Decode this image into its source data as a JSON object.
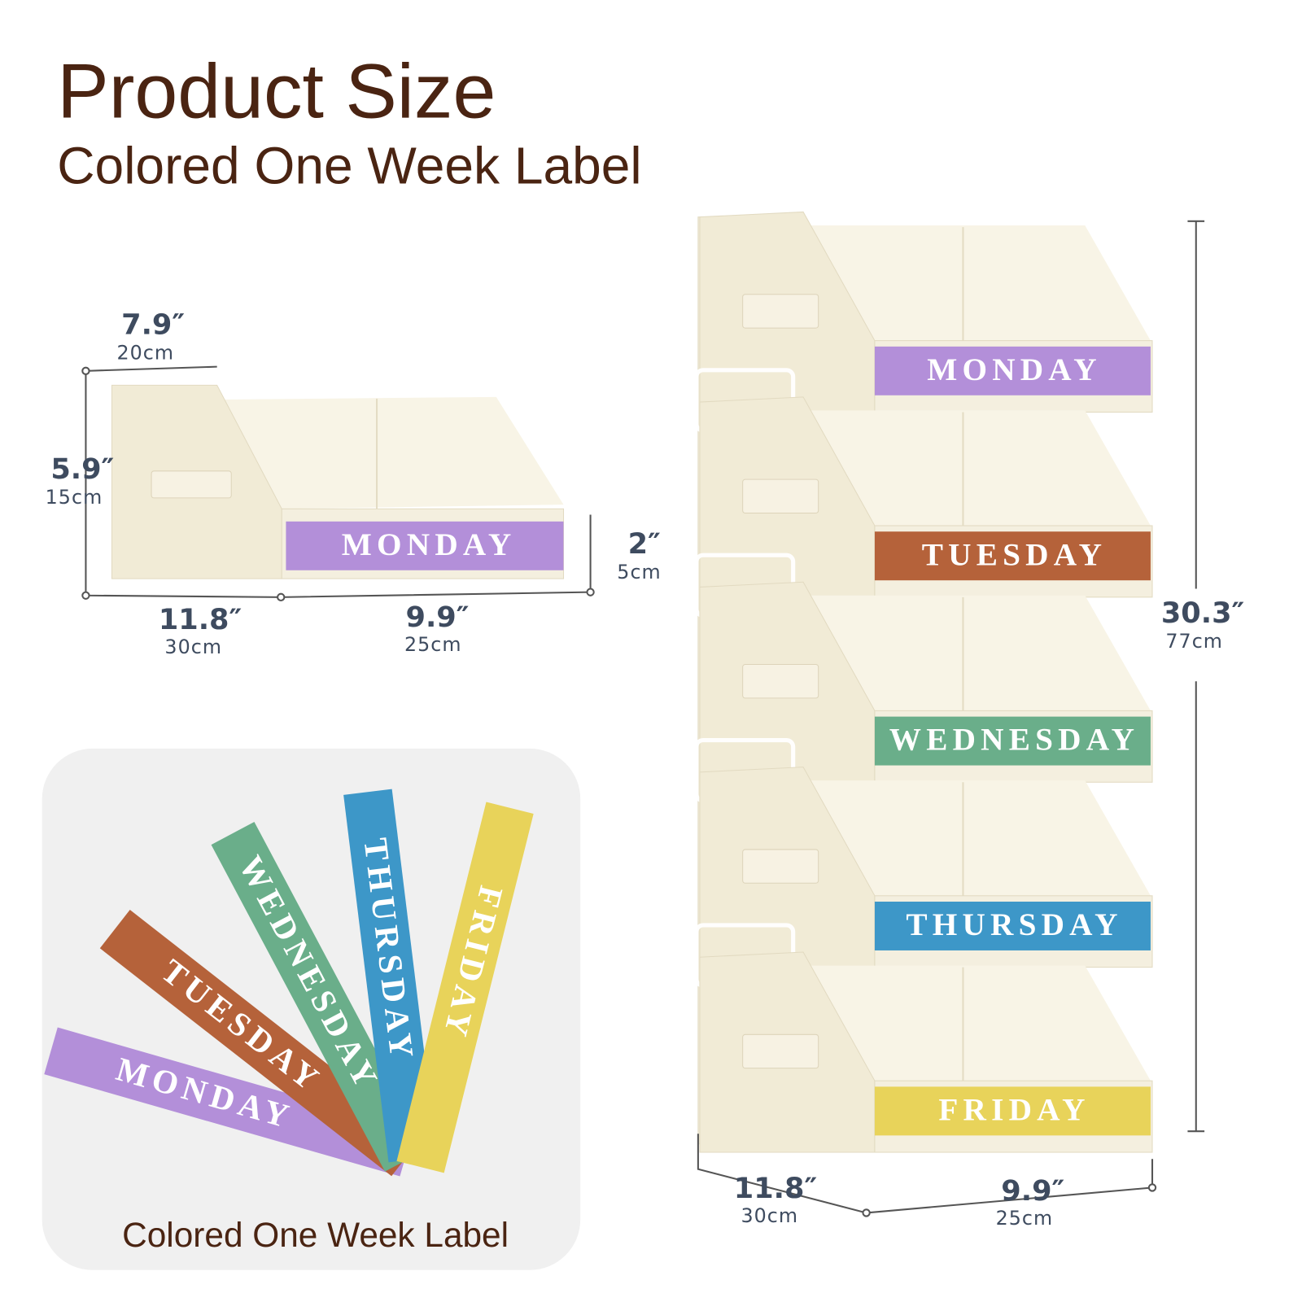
{
  "header": {
    "title": "Product Size",
    "subtitle": "Colored One Week Label"
  },
  "single_bin": {
    "label": "MONDAY",
    "dimensions": [
      {
        "inch": "7.9″",
        "cm": "20cm"
      },
      {
        "inch": "5.9″",
        "cm": "15cm"
      },
      {
        "inch": "11.8″",
        "cm": "30cm"
      },
      {
        "inch": "9.9″",
        "cm": "25cm"
      },
      {
        "inch": "2″",
        "cm": "5cm"
      }
    ]
  },
  "stack": {
    "labels": [
      "MONDAY",
      "TUESDAY",
      "WEDNESDAY",
      "THURSDAY",
      "FRIDAY"
    ],
    "dimensions": [
      {
        "inch": "30.3″",
        "cm": "77cm"
      },
      {
        "inch": "11.8″",
        "cm": "30cm"
      },
      {
        "inch": "9.9″",
        "cm": "25cm"
      }
    ]
  },
  "label_card": {
    "strips": [
      "MONDAY",
      "TUESDAY",
      "WEDNESDAY",
      "THURSDAY",
      "FRIDAY"
    ],
    "caption": "Colored One Week Label"
  }
}
